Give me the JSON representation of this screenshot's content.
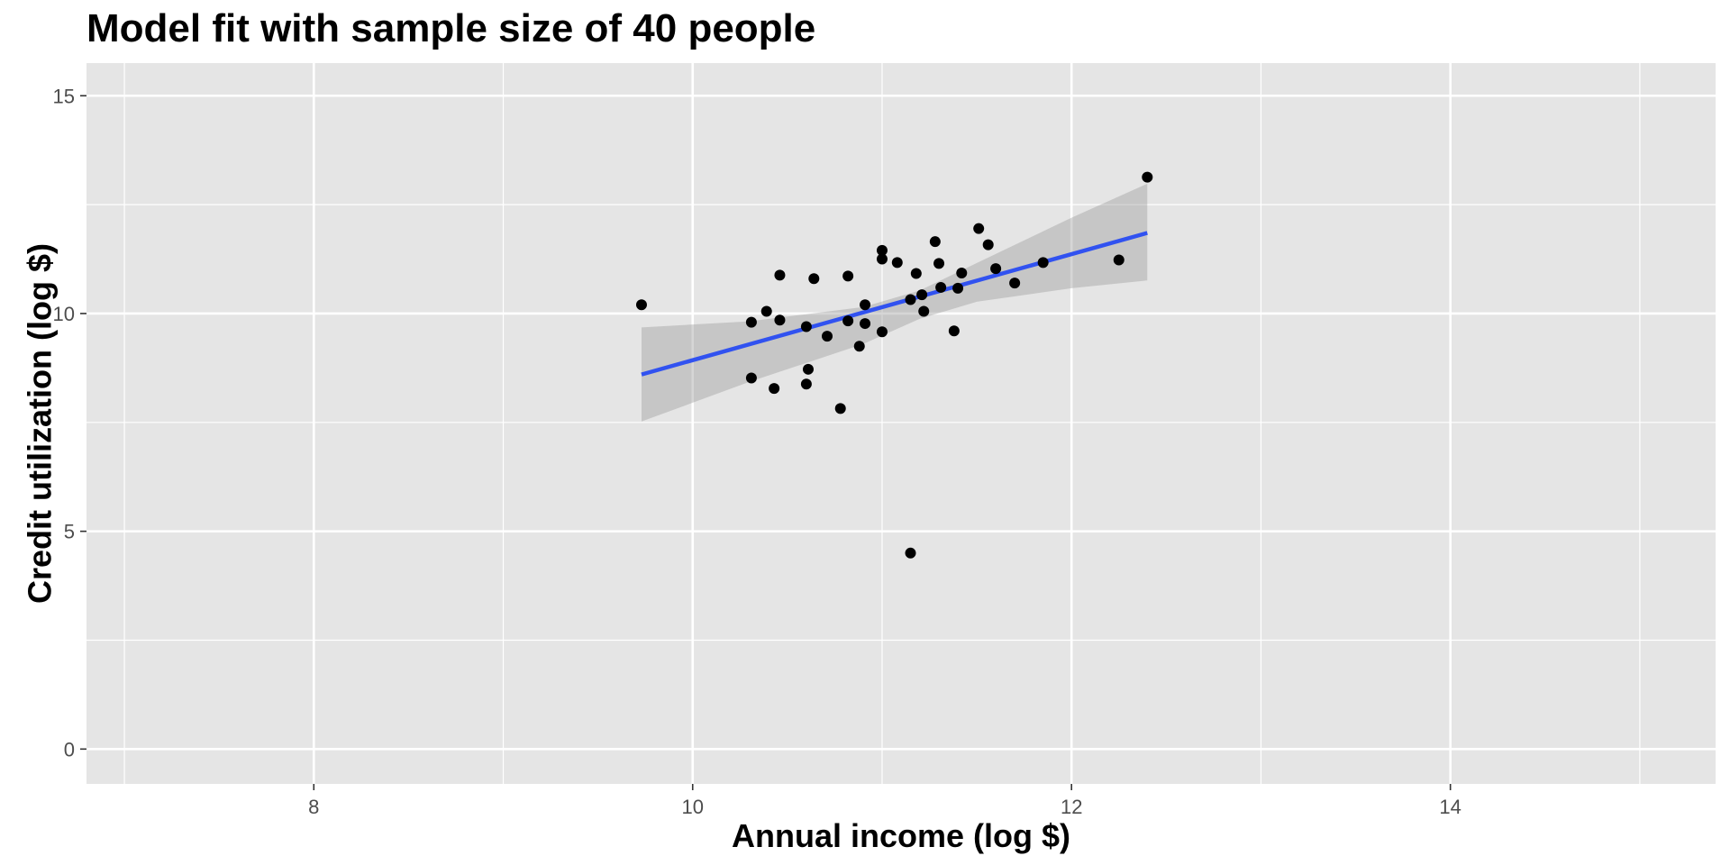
{
  "chart_data": {
    "type": "scatter",
    "title": "Model fit with sample size of 40 people",
    "xlabel": "Annual income (log $)",
    "ylabel": "Credit utilization (log $)",
    "xlim": [
      6.8,
      15.4
    ],
    "ylim": [
      -0.8,
      15.75
    ],
    "x_ticks": [
      8,
      10,
      12,
      14
    ],
    "x_minor_ticks": [
      7,
      9,
      11,
      13,
      15
    ],
    "y_ticks": [
      0,
      5,
      10,
      15
    ],
    "y_minor_ticks": [
      2.5,
      7.5,
      12.5
    ],
    "grid": true,
    "legend": "none",
    "colors": {
      "panel": "#e5e5e5",
      "grid": "#ffffff",
      "point": "#000000",
      "fit_line": "#3152f0",
      "confidence_band": "#999999"
    },
    "points": [
      {
        "x": 9.73,
        "y": 10.2
      },
      {
        "x": 10.31,
        "y": 9.8
      },
      {
        "x": 10.31,
        "y": 8.52
      },
      {
        "x": 10.39,
        "y": 10.05
      },
      {
        "x": 10.43,
        "y": 8.28
      },
      {
        "x": 10.46,
        "y": 10.88
      },
      {
        "x": 10.46,
        "y": 9.85
      },
      {
        "x": 10.6,
        "y": 9.7
      },
      {
        "x": 10.6,
        "y": 8.38
      },
      {
        "x": 10.61,
        "y": 8.72
      },
      {
        "x": 10.64,
        "y": 10.8
      },
      {
        "x": 10.71,
        "y": 9.48
      },
      {
        "x": 10.78,
        "y": 7.82
      },
      {
        "x": 10.82,
        "y": 10.86
      },
      {
        "x": 10.82,
        "y": 9.83
      },
      {
        "x": 10.88,
        "y": 9.25
      },
      {
        "x": 10.91,
        "y": 10.2
      },
      {
        "x": 10.91,
        "y": 9.77
      },
      {
        "x": 11.0,
        "y": 11.45
      },
      {
        "x": 11.0,
        "y": 11.25
      },
      {
        "x": 11.0,
        "y": 9.58
      },
      {
        "x": 11.08,
        "y": 11.17
      },
      {
        "x": 11.15,
        "y": 10.32
      },
      {
        "x": 11.15,
        "y": 4.5
      },
      {
        "x": 11.18,
        "y": 10.92
      },
      {
        "x": 11.21,
        "y": 10.43
      },
      {
        "x": 11.22,
        "y": 10.05
      },
      {
        "x": 11.28,
        "y": 11.65
      },
      {
        "x": 11.3,
        "y": 11.15
      },
      {
        "x": 11.31,
        "y": 10.6
      },
      {
        "x": 11.38,
        "y": 9.6
      },
      {
        "x": 11.4,
        "y": 10.58
      },
      {
        "x": 11.42,
        "y": 10.93
      },
      {
        "x": 11.51,
        "y": 11.95
      },
      {
        "x": 11.56,
        "y": 11.58
      },
      {
        "x": 11.6,
        "y": 11.03
      },
      {
        "x": 11.7,
        "y": 10.7
      },
      {
        "x": 11.85,
        "y": 11.17
      },
      {
        "x": 12.25,
        "y": 11.23
      },
      {
        "x": 12.4,
        "y": 13.13
      }
    ],
    "fit": {
      "method": "linear regression",
      "x": [
        9.73,
        12.4
      ],
      "y": [
        8.6,
        11.85
      ]
    },
    "confidence_band": {
      "x": [
        9.73,
        10.3,
        10.9,
        11.2,
        11.5,
        12.0,
        12.4
      ],
      "lower": [
        7.52,
        8.43,
        9.3,
        9.88,
        10.27,
        10.58,
        10.76
      ],
      "upper": [
        9.68,
        9.82,
        10.15,
        10.53,
        11.16,
        12.2,
        12.98
      ]
    }
  }
}
